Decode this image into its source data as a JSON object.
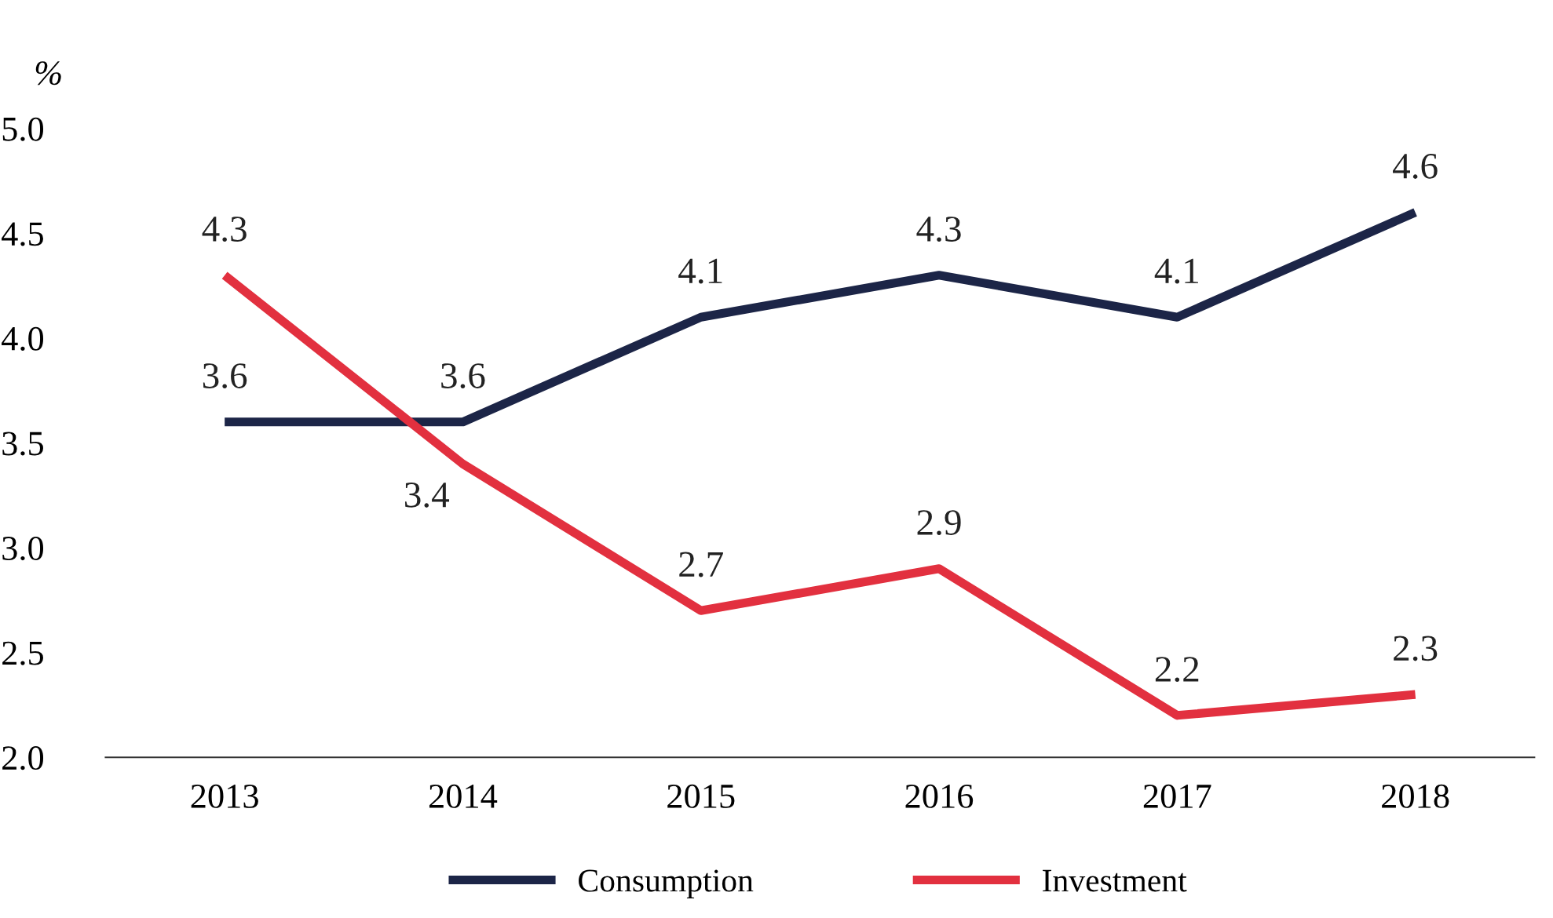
{
  "chart_data": {
    "type": "line",
    "ylabel": "%",
    "categories": [
      "2013",
      "2014",
      "2015",
      "2016",
      "2017",
      "2018"
    ],
    "series": [
      {
        "name": "Consumption",
        "color": "#1c2547",
        "values": [
          3.6,
          3.6,
          4.1,
          4.3,
          4.1,
          4.6
        ]
      },
      {
        "name": "Investment",
        "color": "#e2303f",
        "values": [
          4.3,
          3.4,
          2.7,
          2.9,
          2.2,
          2.3
        ]
      }
    ],
    "ylim": [
      2.0,
      5.0
    ],
    "yticks": [
      {
        "value": 2.0,
        "label": "2.0"
      },
      {
        "value": 2.5,
        "label": "2.5"
      },
      {
        "value": 3.0,
        "label": "3.0"
      },
      {
        "value": 3.5,
        "label": "3.5"
      },
      {
        "value": 4.0,
        "label": "4.0"
      },
      {
        "value": 4.5,
        "label": "4.5"
      },
      {
        "value": 5.0,
        "label": "5.0"
      }
    ],
    "data_labels": true,
    "grid": false,
    "legend": "bottom",
    "marker": "none",
    "line_style": "solid"
  }
}
